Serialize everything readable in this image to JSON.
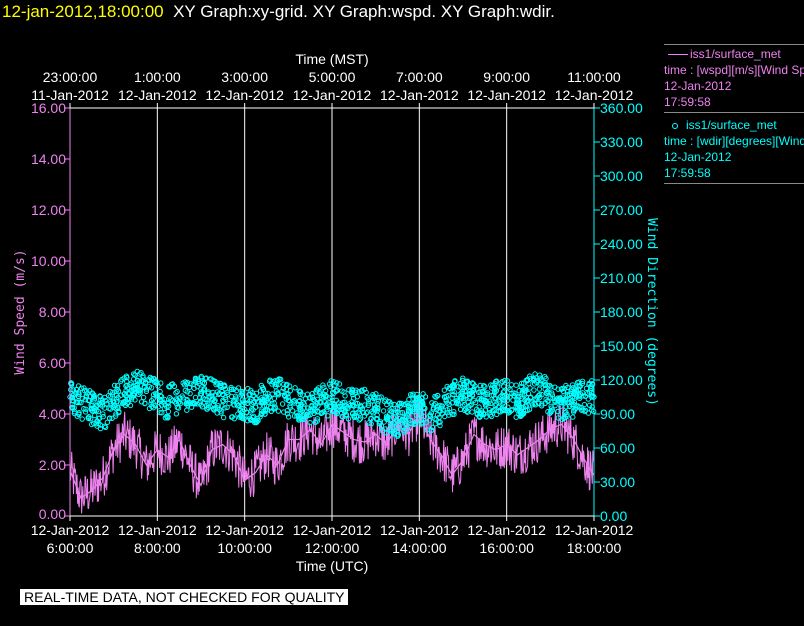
{
  "title": {
    "time": "12-jan-2012,18:00:00",
    "graphs": "XY Graph:xy-grid.  XY Graph:wspd.  XY Graph:wdir."
  },
  "legend": {
    "wspd": {
      "name": "iss1/surface_met",
      "desc": "time : [wspd][m/s][Wind Speed]",
      "date": "12-Jan-2012",
      "time": "17:59:58"
    },
    "wdir": {
      "name": "iss1/surface_met",
      "desc": "time : [wdir][degrees][Wind Direction]",
      "date": "12-Jan-2012",
      "time": "17:59:58"
    }
  },
  "disclaimer": "REAL-TIME DATA, NOT CHECKED FOR QUALITY",
  "chart_data": {
    "type": "line",
    "top_axis_title": "Time (MST)",
    "top_ticks": [
      {
        "time": "23:00:00",
        "date": "11-Jan-2012"
      },
      {
        "time": "1:00:00",
        "date": "12-Jan-2012"
      },
      {
        "time": "3:00:00",
        "date": "12-Jan-2012"
      },
      {
        "time": "5:00:00",
        "date": "12-Jan-2012"
      },
      {
        "time": "7:00:00",
        "date": "12-Jan-2012"
      },
      {
        "time": "9:00:00",
        "date": "12-Jan-2012"
      },
      {
        "time": "11:00:00",
        "date": "12-Jan-2012"
      }
    ],
    "xlabel": "Time (UTC)",
    "bottom_ticks": [
      {
        "date": "12-Jan-2012",
        "time": "6:00:00"
      },
      {
        "date": "12-Jan-2012",
        "time": "8:00:00"
      },
      {
        "date": "12-Jan-2012",
        "time": "10:00:00"
      },
      {
        "date": "12-Jan-2012",
        "time": "12:00:00"
      },
      {
        "date": "12-Jan-2012",
        "time": "14:00:00"
      },
      {
        "date": "12-Jan-2012",
        "time": "16:00:00"
      },
      {
        "date": "12-Jan-2012",
        "time": "18:00:00"
      }
    ],
    "x_hours": [
      6,
      8,
      10,
      12,
      14,
      16,
      18
    ],
    "xlim": [
      6,
      18
    ],
    "ylabel_left": "Wind Speed (m/s)",
    "ylim_left": [
      0,
      16
    ],
    "yticks_left": [
      "0.00",
      "2.00",
      "4.00",
      "6.00",
      "8.00",
      "10.00",
      "12.00",
      "14.00",
      "16.00"
    ],
    "ylabel_right": "Wind Direction (degrees)",
    "ylim_right": [
      0,
      360
    ],
    "yticks_right": [
      "0.00",
      "30.00",
      "60.00",
      "90.00",
      "120.00",
      "150.00",
      "180.00",
      "210.00",
      "240.00",
      "270.00",
      "300.00",
      "330.00",
      "360.00"
    ],
    "grid": "vertical",
    "colors": {
      "wspd": "#ee82ee",
      "wdir": "#00ffff",
      "grid": "#ffffff"
    },
    "series": [
      {
        "name": "iss1/surface_met wspd",
        "style": "line",
        "x": [
          6.0,
          6.25,
          6.5,
          6.75,
          7.0,
          7.25,
          7.5,
          7.75,
          8.0,
          8.25,
          8.5,
          8.75,
          9.0,
          9.25,
          9.5,
          9.75,
          10.0,
          10.25,
          10.5,
          10.75,
          11.0,
          11.25,
          11.5,
          11.75,
          12.0,
          12.25,
          12.5,
          12.75,
          13.0,
          13.25,
          13.5,
          13.75,
          14.0,
          14.25,
          14.5,
          14.75,
          15.0,
          15.25,
          15.5,
          15.75,
          16.0,
          16.25,
          16.5,
          16.75,
          17.0,
          17.25,
          17.5,
          17.75,
          18.0
        ],
        "values": [
          1.8,
          0.7,
          1.0,
          1.5,
          2.6,
          3.2,
          2.8,
          2.0,
          2.6,
          2.3,
          3.0,
          2.0,
          1.2,
          2.6,
          2.8,
          2.4,
          1.4,
          1.7,
          2.4,
          2.0,
          3.0,
          3.0,
          3.4,
          2.8,
          3.6,
          3.3,
          3.0,
          2.9,
          3.2,
          2.8,
          3.6,
          3.2,
          4.0,
          3.0,
          2.4,
          1.6,
          2.2,
          3.2,
          2.8,
          2.6,
          2.8,
          2.4,
          2.7,
          3.0,
          3.4,
          3.6,
          3.1,
          2.3,
          1.6
        ]
      },
      {
        "name": "iss1/surface_met wdir",
        "style": "points",
        "x": [
          6.0,
          6.25,
          6.5,
          6.75,
          7.0,
          7.25,
          7.5,
          7.75,
          8.0,
          8.25,
          8.5,
          8.75,
          9.0,
          9.25,
          9.5,
          9.75,
          10.0,
          10.25,
          10.5,
          10.75,
          11.0,
          11.25,
          11.5,
          11.75,
          12.0,
          12.25,
          12.5,
          12.75,
          13.0,
          13.25,
          13.5,
          13.75,
          14.0,
          14.25,
          14.5,
          14.75,
          15.0,
          15.25,
          15.5,
          15.75,
          16.0,
          16.25,
          16.5,
          16.75,
          17.0,
          17.25,
          17.5,
          17.75,
          18.0
        ],
        "values": [
          105,
          100,
          95,
          90,
          100,
          108,
          115,
          110,
          106,
          100,
          104,
          108,
          112,
          106,
          102,
          98,
          100,
          96,
          104,
          108,
          102,
          96,
          94,
          100,
          105,
          100,
          97,
          98,
          94,
          88,
          84,
          92,
          98,
          88,
          95,
          104,
          108,
          102,
          100,
          104,
          106,
          100,
          108,
          112,
          104,
          100,
          102,
          106,
          105
        ]
      }
    ]
  }
}
